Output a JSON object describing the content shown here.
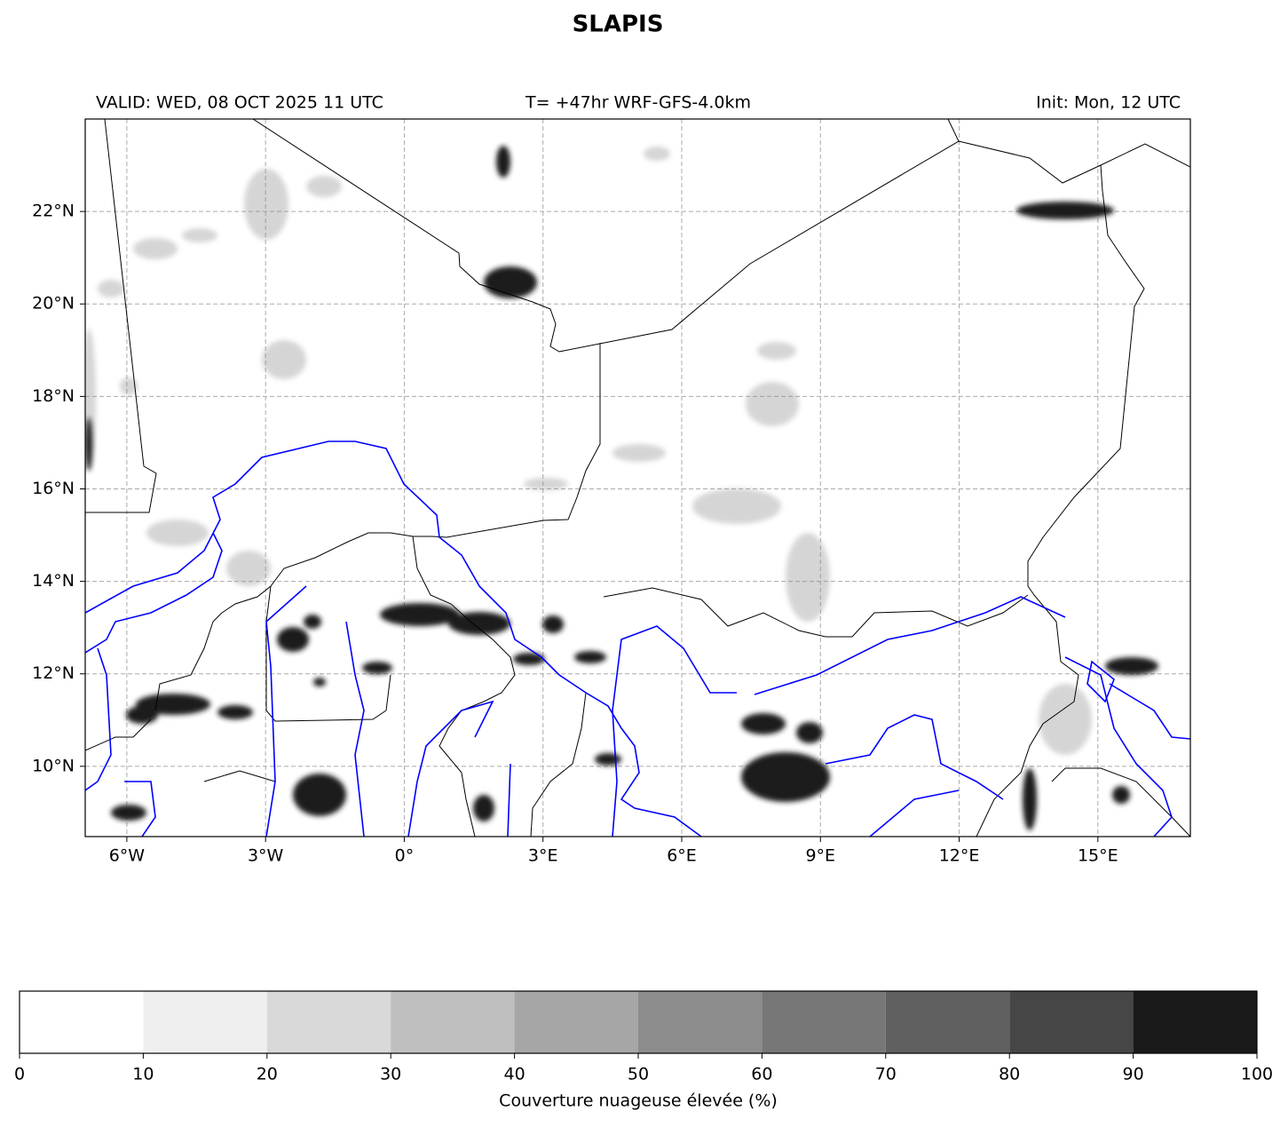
{
  "title": "SLAPIS",
  "map": {
    "valid": "VALID: WED, 08 OCT 2025 11 UTC",
    "run": "T= +47hr WRF-GFS-4.0km",
    "init": "Init: Mon, 12 UTC",
    "xlim": [
      -6.9,
      17.0
    ],
    "ylim": [
      8.48,
      24.0
    ],
    "xticks": [
      {
        "value": -6,
        "label": "6°W"
      },
      {
        "value": -3,
        "label": "3°W"
      },
      {
        "value": 0,
        "label": "0°"
      },
      {
        "value": 3,
        "label": "3°E"
      },
      {
        "value": 6,
        "label": "6°E"
      },
      {
        "value": 9,
        "label": "9°E"
      },
      {
        "value": 12,
        "label": "12°E"
      },
      {
        "value": 15,
        "label": "15°E"
      }
    ],
    "yticks": [
      {
        "value": 10,
        "label": "10°N"
      },
      {
        "value": 12,
        "label": "12°N"
      },
      {
        "value": 14,
        "label": "14°N"
      },
      {
        "value": 16,
        "label": "16°N"
      },
      {
        "value": 18,
        "label": "18°N"
      },
      {
        "value": 20,
        "label": "20°N"
      },
      {
        "value": 22,
        "label": "22°N"
      }
    ],
    "grid": true
  },
  "colorbar": {
    "label": "Couverture nuageuse élevée (%)",
    "ticks": [
      0,
      10,
      20,
      30,
      40,
      50,
      60,
      70,
      80,
      90,
      100
    ],
    "colors": [
      "#ffffff",
      "#efefef",
      "#d9d9d9",
      "#bfbfbf",
      "#a6a6a6",
      "#8c8c8c",
      "#777777",
      "#606060",
      "#464646",
      "#1a1a1a"
    ]
  }
}
